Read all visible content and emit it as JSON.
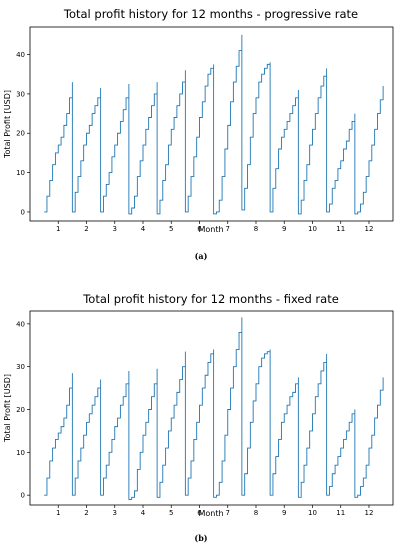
{
  "chart_data": [
    {
      "type": "line",
      "title": "Total profit history for 12 months - progressive rate",
      "xlabel": "Month",
      "ylabel": "Total Profit [USD]",
      "caption": "(a)",
      "xticks": [
        1,
        2,
        3,
        4,
        5,
        6,
        7,
        8,
        9,
        10,
        11,
        12
      ],
      "yticks": [
        0,
        10,
        20,
        30,
        40
      ],
      "xlim": [
        0,
        12.85
      ],
      "ylim": [
        -2.3,
        47
      ],
      "grid": false,
      "legend": "none",
      "color": "#1f77b4",
      "monthly_final_profit": [
        33,
        31.5,
        32.5,
        33,
        36,
        37.5,
        45,
        38,
        31,
        36.5,
        25,
        32
      ],
      "series": [
        {
          "x": [
            0.5,
            0.6,
            0.7,
            0.8,
            0.9,
            1.0,
            1.1,
            1.2,
            1.3,
            1.4,
            1.5,
            1.5,
            1.6,
            1.7,
            1.8,
            1.9,
            2.0,
            2.1,
            2.2,
            2.3,
            2.4,
            2.5,
            2.5,
            2.6,
            2.7,
            2.8,
            2.9,
            3.0,
            3.1,
            3.2,
            3.3,
            3.4,
            3.5,
            3.5,
            3.6,
            3.7,
            3.8,
            3.9,
            4.0,
            4.1,
            4.2,
            4.3,
            4.4,
            4.5,
            4.5,
            4.6,
            4.7,
            4.8,
            4.9,
            5.0,
            5.1,
            5.2,
            5.3,
            5.4,
            5.5,
            5.5,
            5.6,
            5.7,
            5.8,
            5.9,
            6.0,
            6.1,
            6.2,
            6.3,
            6.4,
            6.5,
            6.5,
            6.6,
            6.7,
            6.8,
            6.9,
            7.0,
            7.1,
            7.2,
            7.3,
            7.4,
            7.5,
            7.5,
            7.6,
            7.7,
            7.8,
            7.9,
            8.0,
            8.1,
            8.2,
            8.3,
            8.4,
            8.5,
            8.5,
            8.6,
            8.7,
            8.8,
            8.9,
            9.0,
            9.1,
            9.2,
            9.3,
            9.4,
            9.5,
            9.5,
            9.6,
            9.7,
            9.8,
            9.9,
            10.0,
            10.1,
            10.2,
            10.3,
            10.4,
            10.5,
            10.5,
            10.6,
            10.7,
            10.8,
            10.9,
            11.0,
            11.1,
            11.2,
            11.3,
            11.4,
            11.5,
            11.5,
            11.6,
            11.7,
            11.8,
            11.9,
            12.0,
            12.1,
            12.2,
            12.3,
            12.4,
            12.5
          ],
          "y": [
            0,
            4,
            8,
            12,
            15,
            17,
            19,
            22,
            25,
            29,
            33,
            0,
            5,
            9,
            13,
            17,
            20,
            22,
            25,
            27,
            29,
            31.5,
            0,
            4,
            7,
            10,
            14,
            17,
            20,
            23,
            26,
            29,
            32.5,
            -0.5,
            1,
            4,
            9,
            13,
            17,
            21,
            24,
            27,
            30,
            33,
            -0.5,
            3,
            8,
            12,
            17,
            21,
            24,
            27,
            30,
            33,
            36,
            0,
            4,
            9,
            14,
            19,
            24,
            28,
            32,
            35,
            36.5,
            37.5,
            -0.5,
            0,
            3,
            9,
            16,
            22,
            28,
            33,
            37,
            41,
            45,
            0.5,
            6,
            12,
            19,
            25,
            29,
            33,
            35,
            36.5,
            37.5,
            38,
            0,
            6,
            11,
            16,
            19,
            21,
            23,
            25,
            27,
            29,
            31,
            -0.5,
            3,
            8,
            12,
            17,
            21,
            25,
            29,
            32,
            34.5,
            36.5,
            0,
            2,
            6,
            8,
            11,
            13,
            16,
            18,
            21,
            23,
            25,
            -0.5,
            0,
            2,
            5,
            9,
            13,
            17,
            21,
            25,
            28.5,
            32
          ]
        }
      ]
    },
    {
      "type": "line",
      "title": "Total profit history for 12 months - fixed rate",
      "xlabel": "Month",
      "ylabel": "Total Profit [USD]",
      "caption": "(b)",
      "xticks": [
        1,
        2,
        3,
        4,
        5,
        6,
        7,
        8,
        9,
        10,
        11,
        12
      ],
      "yticks": [
        0,
        10,
        20,
        30,
        40
      ],
      "xlim": [
        0,
        12.85
      ],
      "ylim": [
        -2.3,
        43
      ],
      "grid": false,
      "legend": "none",
      "color": "#1f77b4",
      "monthly_final_profit": [
        28.5,
        27,
        29,
        29.5,
        33.5,
        34,
        41.5,
        34,
        27.5,
        33,
        20,
        27.5
      ],
      "series": [
        {
          "x": [
            0.5,
            0.6,
            0.7,
            0.8,
            0.9,
            1.0,
            1.1,
            1.2,
            1.3,
            1.4,
            1.5,
            1.5,
            1.6,
            1.7,
            1.8,
            1.9,
            2.0,
            2.1,
            2.2,
            2.3,
            2.4,
            2.5,
            2.5,
            2.6,
            2.7,
            2.8,
            2.9,
            3.0,
            3.1,
            3.2,
            3.3,
            3.4,
            3.5,
            3.5,
            3.6,
            3.7,
            3.8,
            3.9,
            4.0,
            4.1,
            4.2,
            4.3,
            4.4,
            4.5,
            4.5,
            4.6,
            4.7,
            4.8,
            4.9,
            5.0,
            5.1,
            5.2,
            5.3,
            5.4,
            5.5,
            5.5,
            5.6,
            5.7,
            5.8,
            5.9,
            6.0,
            6.1,
            6.2,
            6.3,
            6.4,
            6.5,
            6.5,
            6.6,
            6.7,
            6.8,
            6.9,
            7.0,
            7.1,
            7.2,
            7.3,
            7.4,
            7.5,
            7.5,
            7.6,
            7.7,
            7.8,
            7.9,
            8.0,
            8.1,
            8.2,
            8.3,
            8.4,
            8.5,
            8.5,
            8.6,
            8.7,
            8.8,
            8.9,
            9.0,
            9.1,
            9.2,
            9.3,
            9.4,
            9.5,
            9.5,
            9.6,
            9.7,
            9.8,
            9.9,
            10.0,
            10.1,
            10.2,
            10.3,
            10.4,
            10.5,
            10.5,
            10.6,
            10.7,
            10.8,
            10.9,
            11.0,
            11.1,
            11.2,
            11.3,
            11.4,
            11.5,
            11.5,
            11.6,
            11.7,
            11.8,
            11.9,
            12.0,
            12.1,
            12.2,
            12.3,
            12.4,
            12.5
          ],
          "y": [
            0,
            4,
            8,
            11,
            13,
            14.5,
            16,
            18,
            21,
            25,
            28.5,
            0,
            4,
            8,
            11,
            14,
            17,
            19,
            21,
            23,
            25,
            27,
            0,
            4,
            7,
            10,
            13,
            16,
            18,
            21,
            23,
            26,
            29,
            -1,
            -0.5,
            1,
            6,
            10,
            14,
            17,
            20,
            23,
            26,
            29.5,
            -0.5,
            3,
            7,
            11,
            15,
            18,
            21,
            24,
            27,
            30,
            33.5,
            0,
            4,
            8,
            13,
            17,
            21,
            25,
            28,
            31,
            33,
            34,
            -0.5,
            0,
            3,
            8,
            14,
            20,
            25,
            30,
            34,
            38,
            41.5,
            0,
            5,
            11,
            17,
            22,
            26,
            30,
            32,
            33,
            33.5,
            34,
            0,
            5,
            9,
            13,
            17,
            19,
            21,
            23,
            24,
            26,
            27.5,
            -0.5,
            3,
            7,
            11,
            15,
            19,
            23,
            26,
            29,
            31,
            33,
            0,
            2,
            5,
            7,
            9,
            11,
            13,
            15,
            17,
            19,
            20,
            -0.5,
            0,
            2,
            4,
            7,
            11,
            14,
            18,
            21,
            24.5,
            27.5
          ]
        }
      ]
    }
  ]
}
